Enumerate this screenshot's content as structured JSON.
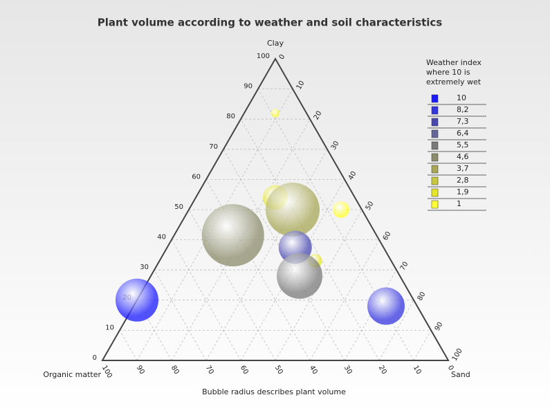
{
  "chart_data": {
    "type": "ternary-bubble",
    "title": "Plant volume according to weather and soil characteristics",
    "subtitle": "Bubble radius describes plant volume",
    "axes": {
      "clay": "Clay",
      "sand": "Sand",
      "organic": "Organic matter"
    },
    "ticks": [
      0,
      10,
      20,
      30,
      40,
      50,
      60,
      70,
      80,
      90,
      100
    ],
    "grid": true,
    "legend_title": [
      "Weather index",
      "where 10 is",
      "extremely wet"
    ],
    "legend": [
      {
        "value": 10,
        "label": "10",
        "color": "#1a1aff"
      },
      {
        "value": 8.2,
        "label": "8,2",
        "color": "#3535e0"
      },
      {
        "value": 7.3,
        "label": "7,3",
        "color": "#4848b0"
      },
      {
        "value": 6.4,
        "label": "6,4",
        "color": "#66669a"
      },
      {
        "value": 5.5,
        "label": "5,5",
        "color": "#7a7a7a"
      },
      {
        "value": 4.6,
        "label": "4,6",
        "color": "#8c8c6c"
      },
      {
        "value": 3.7,
        "label": "3,7",
        "color": "#a8a858"
      },
      {
        "value": 2.8,
        "label": "2,8",
        "color": "#c8c840"
      },
      {
        "value": 1.9,
        "label": "1,9",
        "color": "#e6e628"
      },
      {
        "value": 1,
        "label": "1",
        "color": "#ffff33"
      }
    ],
    "clay": [
      82,
      54,
      50,
      50,
      41.5,
      37.5,
      33,
      28,
      20,
      18
    ],
    "sand": [
      9,
      23,
      30,
      44,
      17,
      37,
      45,
      43,
      0,
      73
    ],
    "organic": [
      9,
      23,
      20,
      6,
      41.5,
      25.5,
      22,
      29,
      80,
      9
    ],
    "volume": [
      6,
      18,
      39,
      12,
      45,
      24,
      10,
      33,
      31,
      27
    ],
    "weather": [
      1,
      1.9,
      3.7,
      1,
      4.6,
      7.3,
      1.9,
      5.5,
      10,
      8.2
    ]
  }
}
